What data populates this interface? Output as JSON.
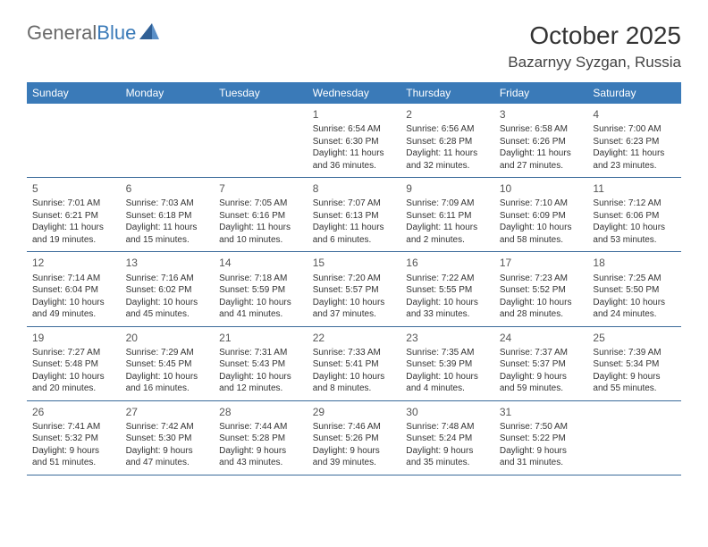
{
  "logo": {
    "part1": "General",
    "part2": "Blue"
  },
  "title": "October 2025",
  "location": "Bazarnyy Syzgan, Russia",
  "colors": {
    "header_bg": "#3a7ab8",
    "border": "#3a6a9a",
    "text": "#333333",
    "logo_gray": "#6a6a6a",
    "logo_blue": "#3a7ab8",
    "background": "#ffffff"
  },
  "dayNames": [
    "Sunday",
    "Monday",
    "Tuesday",
    "Wednesday",
    "Thursday",
    "Friday",
    "Saturday"
  ],
  "weeks": [
    [
      {
        "num": "",
        "sunrise": "",
        "sunset": "",
        "daylight": ""
      },
      {
        "num": "",
        "sunrise": "",
        "sunset": "",
        "daylight": ""
      },
      {
        "num": "",
        "sunrise": "",
        "sunset": "",
        "daylight": ""
      },
      {
        "num": "1",
        "sunrise": "Sunrise: 6:54 AM",
        "sunset": "Sunset: 6:30 PM",
        "daylight": "Daylight: 11 hours and 36 minutes."
      },
      {
        "num": "2",
        "sunrise": "Sunrise: 6:56 AM",
        "sunset": "Sunset: 6:28 PM",
        "daylight": "Daylight: 11 hours and 32 minutes."
      },
      {
        "num": "3",
        "sunrise": "Sunrise: 6:58 AM",
        "sunset": "Sunset: 6:26 PM",
        "daylight": "Daylight: 11 hours and 27 minutes."
      },
      {
        "num": "4",
        "sunrise": "Sunrise: 7:00 AM",
        "sunset": "Sunset: 6:23 PM",
        "daylight": "Daylight: 11 hours and 23 minutes."
      }
    ],
    [
      {
        "num": "5",
        "sunrise": "Sunrise: 7:01 AM",
        "sunset": "Sunset: 6:21 PM",
        "daylight": "Daylight: 11 hours and 19 minutes."
      },
      {
        "num": "6",
        "sunrise": "Sunrise: 7:03 AM",
        "sunset": "Sunset: 6:18 PM",
        "daylight": "Daylight: 11 hours and 15 minutes."
      },
      {
        "num": "7",
        "sunrise": "Sunrise: 7:05 AM",
        "sunset": "Sunset: 6:16 PM",
        "daylight": "Daylight: 11 hours and 10 minutes."
      },
      {
        "num": "8",
        "sunrise": "Sunrise: 7:07 AM",
        "sunset": "Sunset: 6:13 PM",
        "daylight": "Daylight: 11 hours and 6 minutes."
      },
      {
        "num": "9",
        "sunrise": "Sunrise: 7:09 AM",
        "sunset": "Sunset: 6:11 PM",
        "daylight": "Daylight: 11 hours and 2 minutes."
      },
      {
        "num": "10",
        "sunrise": "Sunrise: 7:10 AM",
        "sunset": "Sunset: 6:09 PM",
        "daylight": "Daylight: 10 hours and 58 minutes."
      },
      {
        "num": "11",
        "sunrise": "Sunrise: 7:12 AM",
        "sunset": "Sunset: 6:06 PM",
        "daylight": "Daylight: 10 hours and 53 minutes."
      }
    ],
    [
      {
        "num": "12",
        "sunrise": "Sunrise: 7:14 AM",
        "sunset": "Sunset: 6:04 PM",
        "daylight": "Daylight: 10 hours and 49 minutes."
      },
      {
        "num": "13",
        "sunrise": "Sunrise: 7:16 AM",
        "sunset": "Sunset: 6:02 PM",
        "daylight": "Daylight: 10 hours and 45 minutes."
      },
      {
        "num": "14",
        "sunrise": "Sunrise: 7:18 AM",
        "sunset": "Sunset: 5:59 PM",
        "daylight": "Daylight: 10 hours and 41 minutes."
      },
      {
        "num": "15",
        "sunrise": "Sunrise: 7:20 AM",
        "sunset": "Sunset: 5:57 PM",
        "daylight": "Daylight: 10 hours and 37 minutes."
      },
      {
        "num": "16",
        "sunrise": "Sunrise: 7:22 AM",
        "sunset": "Sunset: 5:55 PM",
        "daylight": "Daylight: 10 hours and 33 minutes."
      },
      {
        "num": "17",
        "sunrise": "Sunrise: 7:23 AM",
        "sunset": "Sunset: 5:52 PM",
        "daylight": "Daylight: 10 hours and 28 minutes."
      },
      {
        "num": "18",
        "sunrise": "Sunrise: 7:25 AM",
        "sunset": "Sunset: 5:50 PM",
        "daylight": "Daylight: 10 hours and 24 minutes."
      }
    ],
    [
      {
        "num": "19",
        "sunrise": "Sunrise: 7:27 AM",
        "sunset": "Sunset: 5:48 PM",
        "daylight": "Daylight: 10 hours and 20 minutes."
      },
      {
        "num": "20",
        "sunrise": "Sunrise: 7:29 AM",
        "sunset": "Sunset: 5:45 PM",
        "daylight": "Daylight: 10 hours and 16 minutes."
      },
      {
        "num": "21",
        "sunrise": "Sunrise: 7:31 AM",
        "sunset": "Sunset: 5:43 PM",
        "daylight": "Daylight: 10 hours and 12 minutes."
      },
      {
        "num": "22",
        "sunrise": "Sunrise: 7:33 AM",
        "sunset": "Sunset: 5:41 PM",
        "daylight": "Daylight: 10 hours and 8 minutes."
      },
      {
        "num": "23",
        "sunrise": "Sunrise: 7:35 AM",
        "sunset": "Sunset: 5:39 PM",
        "daylight": "Daylight: 10 hours and 4 minutes."
      },
      {
        "num": "24",
        "sunrise": "Sunrise: 7:37 AM",
        "sunset": "Sunset: 5:37 PM",
        "daylight": "Daylight: 9 hours and 59 minutes."
      },
      {
        "num": "25",
        "sunrise": "Sunrise: 7:39 AM",
        "sunset": "Sunset: 5:34 PM",
        "daylight": "Daylight: 9 hours and 55 minutes."
      }
    ],
    [
      {
        "num": "26",
        "sunrise": "Sunrise: 7:41 AM",
        "sunset": "Sunset: 5:32 PM",
        "daylight": "Daylight: 9 hours and 51 minutes."
      },
      {
        "num": "27",
        "sunrise": "Sunrise: 7:42 AM",
        "sunset": "Sunset: 5:30 PM",
        "daylight": "Daylight: 9 hours and 47 minutes."
      },
      {
        "num": "28",
        "sunrise": "Sunrise: 7:44 AM",
        "sunset": "Sunset: 5:28 PM",
        "daylight": "Daylight: 9 hours and 43 minutes."
      },
      {
        "num": "29",
        "sunrise": "Sunrise: 7:46 AM",
        "sunset": "Sunset: 5:26 PM",
        "daylight": "Daylight: 9 hours and 39 minutes."
      },
      {
        "num": "30",
        "sunrise": "Sunrise: 7:48 AM",
        "sunset": "Sunset: 5:24 PM",
        "daylight": "Daylight: 9 hours and 35 minutes."
      },
      {
        "num": "31",
        "sunrise": "Sunrise: 7:50 AM",
        "sunset": "Sunset: 5:22 PM",
        "daylight": "Daylight: 9 hours and 31 minutes."
      },
      {
        "num": "",
        "sunrise": "",
        "sunset": "",
        "daylight": ""
      }
    ]
  ]
}
